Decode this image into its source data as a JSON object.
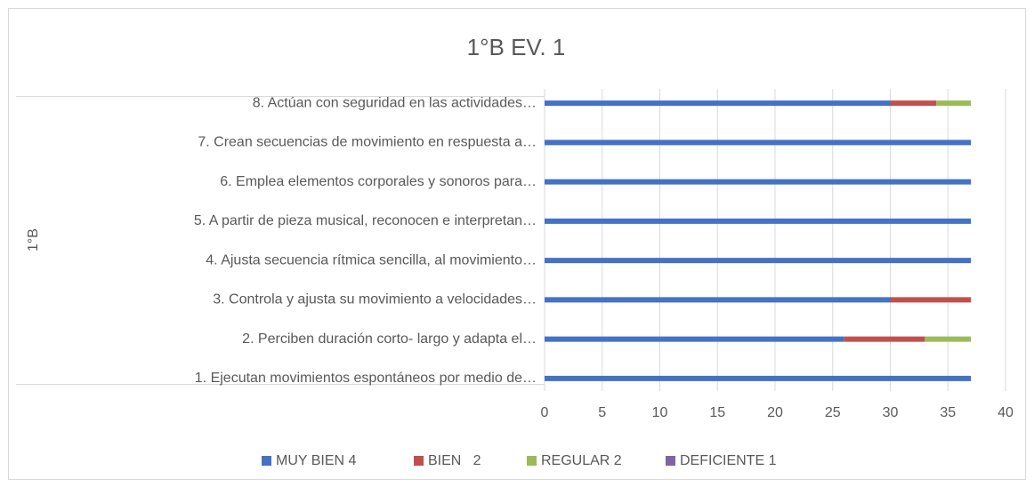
{
  "chart_data": {
    "type": "stacked_barh",
    "title": "1°B  EV. 1",
    "y_label": "1°B",
    "categories": [
      "1. Ejecutan movimientos espontáneos por medio de…",
      "2. Perciben duración corto- largo y adapta el…",
      "3. Controla y ajusta su movimiento a velocidades…",
      "4. Ajusta secuencia rítmica sencilla, al movimiento…",
      "5. A partir de pieza musical, reconocen e interpretan…",
      "6. Emplea elementos corporales y sonoros para…",
      "7. Crean secuencias de movimiento en respuesta a…",
      "8. Actúan con seguridad en las actividades…"
    ],
    "series": [
      {
        "name": "MUY BIEN 4",
        "color": "#4472c4",
        "values": [
          37,
          26,
          30,
          37,
          37,
          37,
          37,
          30
        ]
      },
      {
        "name": "BIEN   2",
        "color": "#c0504d",
        "values": [
          0,
          7,
          7,
          0,
          0,
          0,
          0,
          4
        ]
      },
      {
        "name": "REGULAR 2",
        "color": "#9bbb59",
        "values": [
          0,
          4,
          0,
          0,
          0,
          0,
          0,
          3
        ]
      },
      {
        "name": "DEFICIENTE 1",
        "color": "#8064a2",
        "values": [
          0,
          0,
          0,
          0,
          0,
          0,
          0,
          0
        ]
      }
    ],
    "xlim": [
      0,
      40
    ],
    "xticks": [
      0,
      5,
      10,
      15,
      20,
      25,
      30,
      35,
      40
    ],
    "grid": true,
    "legend": "bottom"
  }
}
